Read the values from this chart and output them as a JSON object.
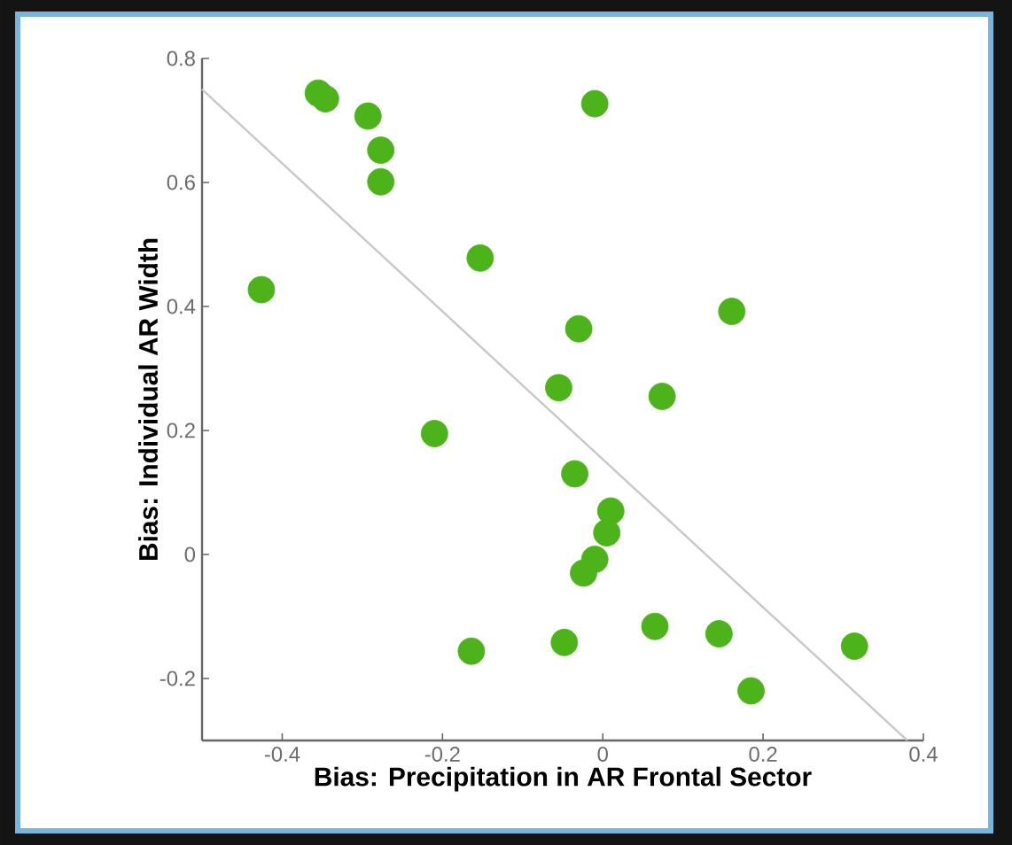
{
  "chart_data": {
    "type": "scatter",
    "xlabel": "Bias: Precipitation in AR Frontal Sector",
    "ylabel": "Bias: Individual AR Width",
    "xlim": [
      -0.5,
      0.4
    ],
    "ylim": [
      -0.3,
      0.8
    ],
    "xticks": [
      -0.4,
      -0.2,
      0,
      0.2,
      0.4
    ],
    "yticks": [
      -0.2,
      0,
      0.2,
      0.4,
      0.6,
      0.8
    ],
    "series": [
      {
        "marker": "circle",
        "color": "#4cb31a",
        "x": [
          -0.355,
          -0.346,
          -0.293,
          -0.277,
          -0.277,
          -0.426,
          -0.153,
          -0.01,
          0.161,
          -0.03,
          -0.055,
          0.074,
          -0.21,
          -0.035,
          0.01,
          0.005,
          -0.01,
          -0.024,
          -0.164,
          -0.048,
          0.065,
          0.145,
          0.185,
          0.314
        ],
        "values": [
          0.744,
          0.735,
          0.707,
          0.652,
          0.601,
          0.427,
          0.478,
          0.727,
          0.392,
          0.364,
          0.269,
          0.255,
          0.195,
          0.13,
          0.07,
          0.035,
          -0.008,
          -0.03,
          -0.156,
          -0.142,
          -0.116,
          -0.128,
          -0.22,
          -0.148
        ]
      },
      {
        "type": "line",
        "marker": "none",
        "color": "#c8c8c8",
        "x": [
          -0.5,
          0.38
        ],
        "values": [
          0.75,
          -0.3
        ]
      }
    ]
  }
}
